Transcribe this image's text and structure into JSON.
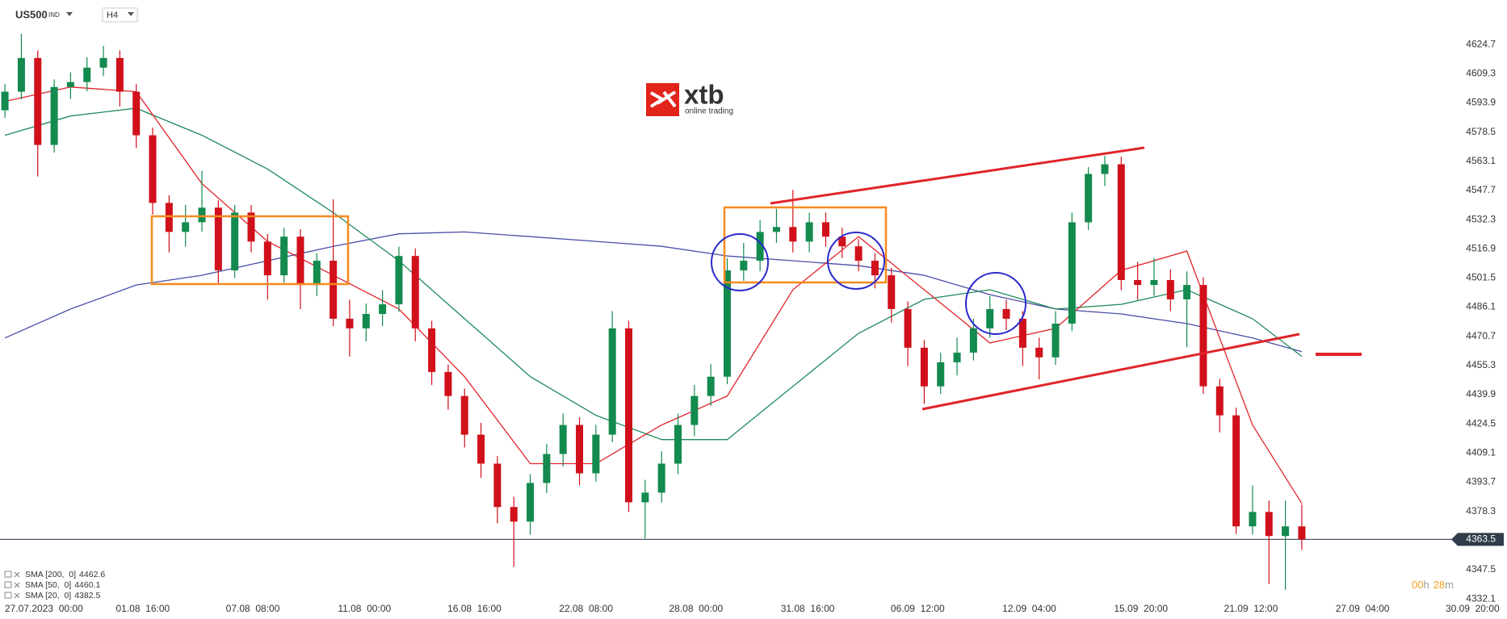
{
  "header": {
    "symbol": "US500",
    "market": "IND",
    "timeframe": "H4"
  },
  "logo": {
    "name": "xtb",
    "tagline": "online trading"
  },
  "countdown": {
    "hours": "00",
    "hours_unit": "h",
    "minutes": "28",
    "minutes_unit": "m"
  },
  "chart_data": {
    "type": "candlestick",
    "up_color": "#138a4e",
    "down_color": "#d0101b",
    "open": [
      4590.0,
      4599.8,
      4617.6,
      4571.7,
      4602.3,
      4604.9,
      4612.5,
      4617.6,
      4599.8,
      4576.8,
      4541.1,
      4525.8,
      4530.9,
      4538.6,
      4505.5,
      4536.0,
      4520.7,
      4502.9,
      4523.3,
      4497.8,
      4510.6,
      4480.0,
      4474.9,
      4482.5,
      4487.6,
      4513.1,
      4474.9,
      4451.9,
      4439.2,
      4418.8,
      4403.5,
      4380.6,
      4372.9,
      4393.3,
      4408.6,
      4423.9,
      4398.4,
      4418.8,
      4474.9,
      4383.1,
      4388.2,
      4403.5,
      4423.9,
      4439.2,
      4449.4,
      4505.5,
      4510.6,
      4525.8,
      4528.4,
      4520.7,
      4530.9,
      4523.3,
      4518.2,
      4510.6,
      4502.9,
      4485.1,
      4464.7,
      4444.3,
      4457.0,
      4462.1,
      4474.9,
      4485.1,
      4480.0,
      4464.7,
      4459.6,
      4477.4,
      4530.9,
      4556.4,
      4561.5,
      4500.4,
      4497.8,
      4500.4,
      4490.2,
      4497.8,
      4444.3,
      4429.0,
      4370.4,
      4378.0,
      4365.3,
      4370.4
    ],
    "high": [
      4603.8,
      4630.4,
      4621.6,
      4606.3,
      4610.0,
      4618.0,
      4624.0,
      4621.6,
      4603.8,
      4580.8,
      4545.1,
      4540.0,
      4558.0,
      4542.6,
      4540.0,
      4540.0,
      4524.7,
      4528.0,
      4527.3,
      4514.6,
      4543.0,
      4490.0,
      4488.0,
      4495.0,
      4518.0,
      4517.1,
      4478.9,
      4455.9,
      4443.2,
      4425.0,
      4407.5,
      4386.0,
      4398.0,
      4414.0,
      4430.0,
      4428.0,
      4424.0,
      4484.0,
      4478.9,
      4395.0,
      4410.0,
      4430.0,
      4445.0,
      4456.0,
      4512.0,
      4520.0,
      4532.0,
      4538.0,
      4548.0,
      4536.0,
      4536.0,
      4528.0,
      4522.0,
      4514.6,
      4506.9,
      4489.1,
      4468.7,
      4462.0,
      4470.0,
      4480.0,
      4492.0,
      4490.0,
      4484.0,
      4470.0,
      4484.0,
      4536.0,
      4560.0,
      4566.0,
      4565.5,
      4510.0,
      4512.0,
      4506.0,
      4505.0,
      4501.8,
      4448.3,
      4433.0,
      4392.0,
      4384.0,
      4384.0,
      4382.0
    ],
    "low": [
      4586.0,
      4595.8,
      4555.0,
      4567.7,
      4596.0,
      4600.0,
      4608.0,
      4592.0,
      4570.0,
      4535.0,
      4515.0,
      4518.0,
      4526.0,
      4498.0,
      4501.5,
      4515.0,
      4490.0,
      4498.9,
      4485.0,
      4492.0,
      4476.0,
      4460.0,
      4468.0,
      4476.0,
      4483.6,
      4468.0,
      4445.0,
      4432.0,
      4412.0,
      4396.0,
      4372.0,
      4349.0,
      4366.0,
      4388.0,
      4402.0,
      4392.0,
      4394.0,
      4414.8,
      4378.0,
      4364.0,
      4383.0,
      4398.0,
      4418.0,
      4434.0,
      4445.4,
      4500.0,
      4505.0,
      4520.0,
      4515.0,
      4515.0,
      4518.0,
      4512.0,
      4505.0,
      4496.0,
      4478.0,
      4455.0,
      4435.0,
      4440.3,
      4450.0,
      4458.0,
      4470.0,
      4474.0,
      4455.0,
      4448.0,
      4455.6,
      4473.4,
      4526.9,
      4550.0,
      4495.0,
      4490.0,
      4492.0,
      4484.0,
      4465.0,
      4440.3,
      4420.0,
      4366.4,
      4366.0,
      4340.0,
      4337.0,
      4358.0
    ],
    "close": [
      4599.8,
      4617.6,
      4571.7,
      4602.3,
      4604.9,
      4612.5,
      4617.6,
      4599.8,
      4576.8,
      4541.1,
      4525.8,
      4530.9,
      4538.6,
      4505.5,
      4536.0,
      4520.7,
      4502.9,
      4523.3,
      4497.8,
      4510.6,
      4480.0,
      4474.9,
      4482.5,
      4487.6,
      4513.1,
      4474.9,
      4451.9,
      4439.2,
      4418.8,
      4403.5,
      4380.6,
      4372.9,
      4393.3,
      4408.6,
      4423.9,
      4398.4,
      4418.8,
      4474.9,
      4383.1,
      4388.2,
      4403.5,
      4423.9,
      4439.2,
      4449.4,
      4505.5,
      4510.6,
      4525.8,
      4528.4,
      4520.7,
      4530.9,
      4523.3,
      4518.2,
      4510.6,
      4502.9,
      4485.1,
      4464.7,
      4444.3,
      4457.0,
      4462.1,
      4474.9,
      4485.1,
      4480.0,
      4464.7,
      4459.6,
      4477.4,
      4530.9,
      4556.4,
      4561.5,
      4500.4,
      4497.8,
      4500.4,
      4490.2,
      4497.8,
      4444.3,
      4429.0,
      4370.4,
      4378.0,
      4365.3,
      4370.4,
      4363.5
    ],
    "series": [
      {
        "name": "SMA [200,  0]",
        "color": "#4a4ea6",
        "x": [
          0,
          4,
          8,
          12,
          16,
          20,
          24,
          28,
          32,
          36,
          40,
          44,
          48,
          52,
          56,
          60,
          64,
          68,
          72,
          76,
          79
        ],
        "values": [
          4469.8,
          4485.1,
          4497.8,
          4502.9,
          4510.6,
          4518.2,
          4524.8,
          4525.8,
          4523.3,
          4520.8,
          4518.2,
          4513.1,
          4510.6,
          4508.0,
          4502.9,
          4492.7,
          4485.1,
          4482.5,
          4477.4,
          4469.8,
          4462.6
        ]
      },
      {
        "name": "SMA [50,  0]",
        "color": "#1e8a5a",
        "x": [
          0,
          4,
          8,
          12,
          16,
          20,
          24,
          28,
          32,
          36,
          40,
          44,
          48,
          52,
          56,
          60,
          64,
          68,
          72,
          76,
          79
        ],
        "values": [
          4576.8,
          4587.0,
          4591.1,
          4576.8,
          4559.0,
          4536.0,
          4510.6,
          4480.0,
          4449.4,
          4429.0,
          4416.2,
          4416.2,
          4444.3,
          4472.3,
          4490.2,
          4495.3,
          4485.1,
          4487.6,
          4495.3,
          4480.0,
          4460.1
        ]
      },
      {
        "name": "SMA [20,  0]",
        "color": "#e0242b",
        "x": [
          0,
          4,
          8,
          12,
          16,
          20,
          24,
          28,
          32,
          36,
          40,
          44,
          48,
          52,
          56,
          60,
          64,
          68,
          72,
          76,
          79
        ],
        "values": [
          4594.7,
          4602.3,
          4599.8,
          4551.3,
          4520.8,
          4502.9,
          4485.1,
          4449.4,
          4403.5,
          4403.5,
          4423.9,
          4439.2,
          4495.3,
          4523.3,
          4495.3,
          4467.2,
          4474.9,
          4505.5,
          4515.7,
          4423.9,
          4382.5
        ]
      }
    ],
    "last_price": 4363.5,
    "xlim": [
      -0.3,
      91.5
    ],
    "xticks": [
      {
        "value": 0,
        "label": "27.07.2023  00:00"
      },
      {
        "value": 8.4,
        "label": "01.08  16:00"
      },
      {
        "value": 15.1,
        "label": "07.08  08:00"
      },
      {
        "value": 21.9,
        "label": "11.08  00:00"
      },
      {
        "value": 28.6,
        "label": "16.08  16:00"
      },
      {
        "value": 35.4,
        "label": "22.08  08:00"
      },
      {
        "value": 42.1,
        "label": "28.08  00:00"
      },
      {
        "value": 48.9,
        "label": "31.08  16:00"
      },
      {
        "value": 55.6,
        "label": "06.09  12:00"
      },
      {
        "value": 62.4,
        "label": "12.09  04:00"
      },
      {
        "value": 69.2,
        "label": "15.09  20:00"
      },
      {
        "value": 75.9,
        "label": "21.09  12:00"
      },
      {
        "value": 82.7,
        "label": "27.09  04:00"
      },
      {
        "value": 89.4,
        "label": "30.09  20:00"
      }
    ],
    "ylim": [
      4329.6,
      4648.2
    ],
    "yticks": [
      4624.7,
      4609.3,
      4593.9,
      4578.5,
      4563.1,
      4547.7,
      4532.3,
      4516.9,
      4501.5,
      4486.1,
      4470.7,
      4455.3,
      4439.9,
      4424.5,
      4409.1,
      4393.7,
      4378.3,
      4347.5,
      4332.1
    ]
  }
}
